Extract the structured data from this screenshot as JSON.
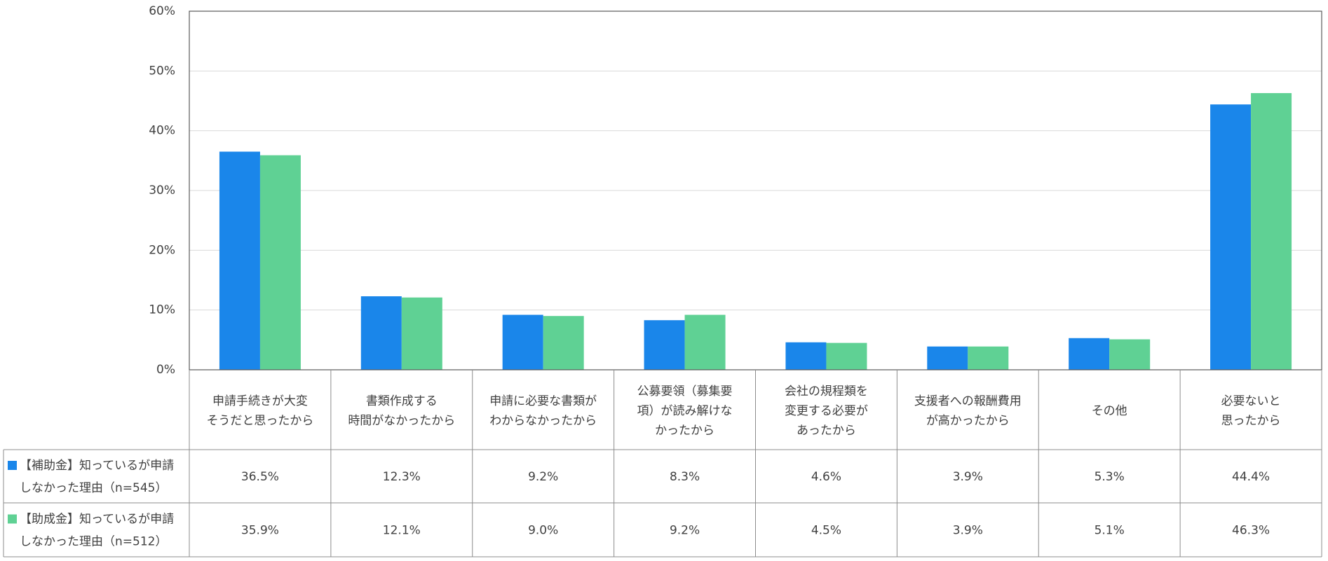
{
  "chart_data": {
    "type": "bar",
    "ylim": [
      0,
      60
    ],
    "y_ticks": [
      "0%",
      "10%",
      "20%",
      "30%",
      "40%",
      "50%",
      "60%"
    ],
    "grid": true,
    "categories": [
      [
        "申請手続きが大変",
        "そうだと思ったから"
      ],
      [
        "書類作成する",
        "時間がなかったから"
      ],
      [
        "申請に必要な書類が",
        "わからなかったから"
      ],
      [
        "公募要領（募集要",
        "項）が読み解けな",
        "かったから"
      ],
      [
        "会社の規程類を",
        "変更する必要が",
        "あったから"
      ],
      [
        "支援者への報酬費用",
        "が高かったから"
      ],
      [
        "その他"
      ],
      [
        "必要ないと",
        "思ったから"
      ]
    ],
    "series": [
      {
        "name": [
          "【補助金】知っているが申請",
          "しなかった理由（n=545）"
        ],
        "color": "#1a86ea",
        "values": [
          36.5,
          12.3,
          9.2,
          8.3,
          4.6,
          3.9,
          5.3,
          44.4
        ],
        "labels": [
          "36.5%",
          "12.3%",
          "9.2%",
          "8.3%",
          "4.6%",
          "3.9%",
          "5.3%",
          "44.4%"
        ]
      },
      {
        "name": [
          "【助成金】知っているが申請",
          "しなかった理由（n=512）"
        ],
        "color": "#5fd194",
        "values": [
          35.9,
          12.1,
          9.0,
          9.2,
          4.5,
          3.9,
          5.1,
          46.3
        ],
        "labels": [
          "35.9%",
          "12.1%",
          "9.0%",
          "9.2%",
          "4.5%",
          "3.9%",
          "5.1%",
          "46.3%"
        ]
      }
    ]
  }
}
